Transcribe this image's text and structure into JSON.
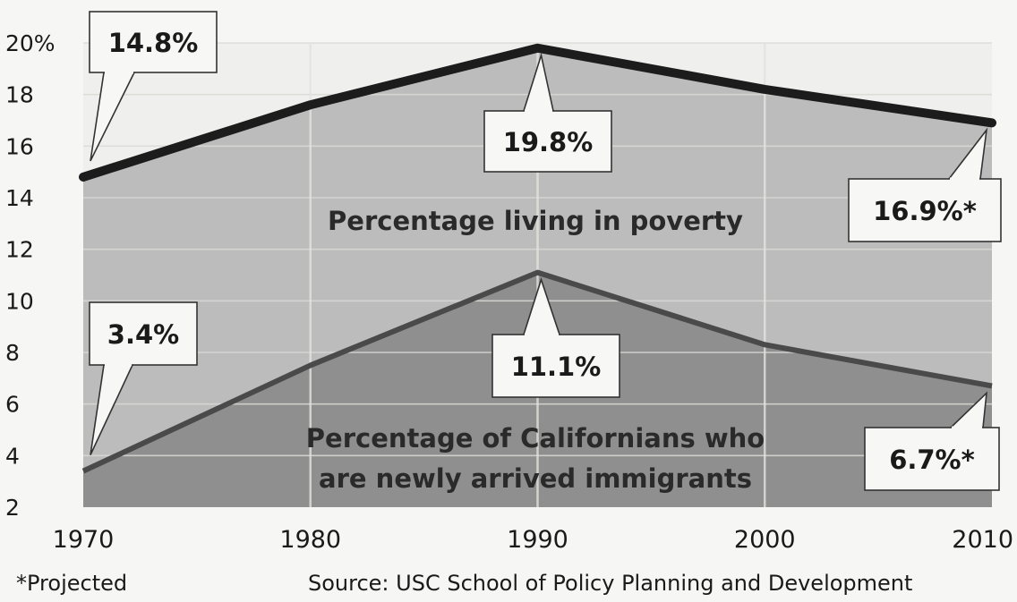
{
  "chart_data": {
    "type": "area",
    "x": [
      1970,
      1980,
      1990,
      2000,
      2010
    ],
    "ylim": [
      2,
      20
    ],
    "yticks": [
      "2",
      "4",
      "6",
      "8",
      "10",
      "12",
      "14",
      "16",
      "18",
      "20%"
    ],
    "ytick_values": [
      2,
      4,
      6,
      8,
      10,
      12,
      14,
      16,
      18,
      20
    ],
    "xticks": [
      "1970",
      "1980",
      "1990",
      "2000",
      "2010"
    ],
    "grid": true,
    "series": [
      {
        "name": "Percentage living in poverty",
        "values": [
          14.8,
          17.6,
          19.8,
          18.2,
          16.9
        ],
        "color": "#bcbcbc",
        "line_color": "#1c1c1c"
      },
      {
        "name": "Percentage of Californians who are newly arrived immigrants",
        "values": [
          3.4,
          7.5,
          11.1,
          8.3,
          6.7
        ],
        "color": "#8f8f8f",
        "line_color": "#4a4a4a"
      }
    ],
    "callouts": [
      {
        "label": "14.8%",
        "x": 1970,
        "y": 14.8
      },
      {
        "label": "19.8%",
        "x": 1990,
        "y": 19.8
      },
      {
        "label": "16.9%*",
        "x": 2010,
        "y": 16.9
      },
      {
        "label": "3.4%",
        "x": 1970,
        "y": 3.4
      },
      {
        "label": "11.1%",
        "x": 1990,
        "y": 11.1
      },
      {
        "label": "6.7%*",
        "x": 2010,
        "y": 6.7
      }
    ],
    "area_labels": [
      {
        "lines": [
          "Percentage living in poverty"
        ]
      },
      {
        "lines": [
          "Percentage of Californians who",
          "are newly arrived immigrants"
        ]
      }
    ]
  },
  "footnote": "*Projected",
  "source": "Source: USC School of Policy Planning and Development"
}
